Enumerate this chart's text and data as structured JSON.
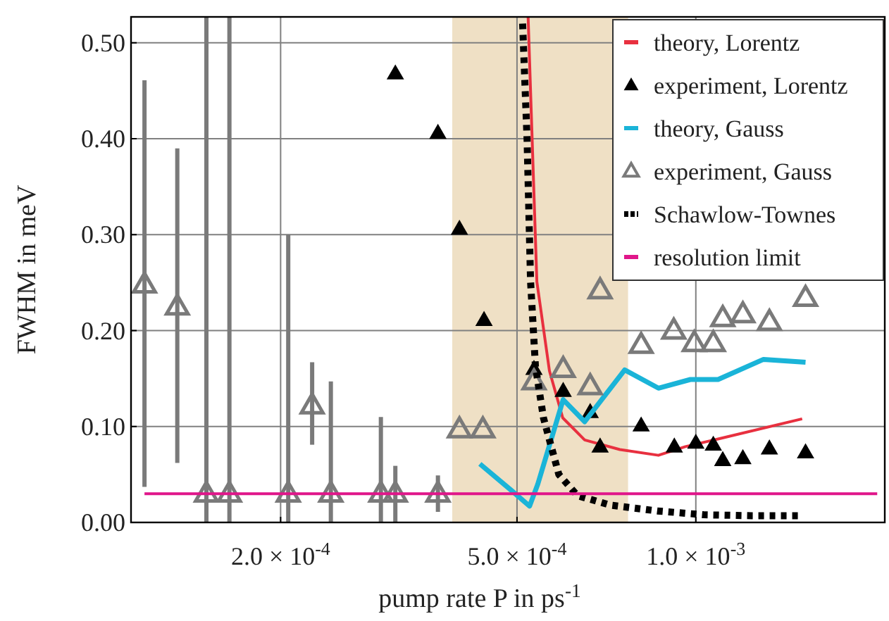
{
  "chart_data": {
    "type": "scatter",
    "xlabel": "pump rate P in ps$^{-1}$",
    "ylabel": "FWHM in meV",
    "log": "x",
    "grid": true,
    "legend": "top right",
    "xlim": [
      0.000112,
      0.00208
    ],
    "ylim": [
      0,
      0.527
    ],
    "xticks": [
      {
        "value": 0.0002,
        "label": "2.0 × 10$^{-4}$"
      },
      {
        "value": 0.0005,
        "label": "5.0 × 10$^{-4}$"
      },
      {
        "value": 0.001,
        "label": "1.0 × 10$^{-3}$"
      }
    ],
    "yticks": [
      {
        "value": 0,
        "label": "0.00"
      },
      {
        "value": 0.1,
        "label": "0.10"
      },
      {
        "value": 0.2,
        "label": "0.20"
      },
      {
        "value": 0.3,
        "label": "0.30"
      },
      {
        "value": 0.4,
        "label": "0.40"
      },
      {
        "value": 0.5,
        "label": "0.50"
      }
    ],
    "bands": [
      {
        "axis": "x",
        "from": 0.000389,
        "to": 0.000769,
        "color": "#efe0c5"
      }
    ],
    "series": [
      {
        "name": "theory, Lorentz",
        "type": "line",
        "color": "#e8303f",
        "line_style": "solid",
        "x": [
          0.000522,
          0.00054,
          0.000567,
          0.000597,
          0.00065,
          0.000745,
          0.000865,
          0.00096,
          0.00109,
          0.00151
        ],
        "values": [
          0.527,
          0.251,
          0.158,
          0.109,
          0.086,
          0.076,
          0.07,
          0.079,
          0.087,
          0.108
        ]
      },
      {
        "name": "experiment, Lorentz",
        "marker": "triangle",
        "color": "#000000",
        "x": [
          0.000312,
          0.000368,
          0.0004,
          0.00044,
          0.000534,
          0.000598,
          0.000664,
          0.00069,
          0.000809,
          0.00092,
          0.001,
          0.00107,
          0.00111,
          0.0012,
          0.00133,
          0.00153
        ],
        "values": [
          0.468,
          0.406,
          0.306,
          0.211,
          0.16,
          0.137,
          0.115,
          0.079,
          0.101,
          0.079,
          0.083,
          0.081,
          0.065,
          0.067,
          0.077,
          0.073
        ]
      },
      {
        "name": "theory, Gauss",
        "type": "line",
        "color": "#1ab4d8",
        "line_style": "solid",
        "x": [
          0.000433,
          0.00049,
          0.000525,
          0.000542,
          0.000598,
          0.00065,
          0.000759,
          0.000865,
          0.000979,
          0.00109,
          0.0013,
          0.00153
        ],
        "values": [
          0.061,
          0.033,
          0.017,
          0.04,
          0.128,
          0.105,
          0.159,
          0.14,
          0.149,
          0.149,
          0.17,
          0.167
        ]
      },
      {
        "name": "experiment, Gauss",
        "marker": "triangle",
        "color": "#7a7a7a",
        "x": [
          0.000118,
          0.000134,
          0.00015,
          0.000164,
          0.000206,
          0.000226,
          0.000243,
          0.000295,
          0.000312,
          0.000368,
          0.0004,
          0.000438,
          0.000534,
          0.000598,
          0.000664,
          0.00069,
          0.000809,
          0.000918,
          0.000994,
          0.00107,
          0.00111,
          0.0012,
          0.00133,
          0.00153
        ],
        "values": [
          0.248,
          0.225,
          0.03,
          0.03,
          0.03,
          0.122,
          0.03,
          0.03,
          0.03,
          0.03,
          0.097,
          0.097,
          0.147,
          0.16,
          0.142,
          0.242,
          0.185,
          0.2,
          0.187,
          0.187,
          0.213,
          0.217,
          0.209,
          0.234
        ],
        "errors": [
          [
            0.037,
            0.461
          ],
          [
            0.062,
            0.39
          ],
          [
            0,
            0.527
          ],
          [
            0,
            0.527
          ],
          [
            0,
            0.3
          ],
          [
            0.081,
            0.167
          ],
          [
            0,
            0.147
          ],
          [
            0,
            0.11
          ],
          [
            0,
            0.059
          ],
          [
            0.011,
            0.049
          ],
          null,
          null,
          null,
          null,
          null,
          null,
          null,
          null,
          null,
          null,
          null,
          null,
          null,
          null
        ]
      },
      {
        "name": "Schawlow-Townes",
        "type": "line",
        "color": "#000000",
        "line_style": "dotted",
        "x": [
          0.000511,
          0.00052,
          0.000527,
          0.000537,
          0.000554,
          0.000588,
          0.000632,
          0.000718,
          0.000861,
          0.00103,
          0.00124,
          0.00151
        ],
        "values": [
          0.52,
          0.398,
          0.251,
          0.163,
          0.109,
          0.05,
          0.028,
          0.018,
          0.012,
          0.008,
          0.007,
          0.007
        ]
      },
      {
        "name": "resolution limit",
        "type": "line",
        "color": "#e0168a",
        "line_style": "solid",
        "x": [
          0.000118,
          0.00202
        ],
        "values": [
          0.03,
          0.03
        ]
      }
    ]
  }
}
